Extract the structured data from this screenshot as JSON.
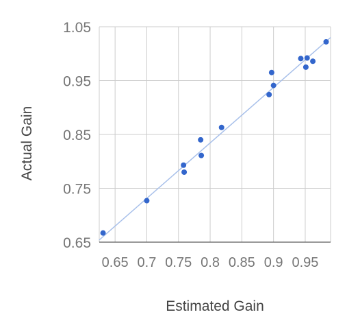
{
  "chart_data": {
    "type": "scatter",
    "title": "",
    "xlabel": "Estimated Gain",
    "ylabel": "Actual Gain",
    "xlim": [
      0.625,
      0.99
    ],
    "ylim": [
      0.65,
      1.05
    ],
    "x_ticks": [
      "0.65",
      "0.7",
      "0.75",
      "0.8",
      "0.85",
      "0.9",
      "0.95"
    ],
    "x_tick_values": [
      0.65,
      0.7,
      0.75,
      0.8,
      0.85,
      0.9,
      0.95
    ],
    "y_ticks": [
      "0.65",
      "0.75",
      "0.85",
      "0.95",
      "1.05"
    ],
    "y_tick_values": [
      0.65,
      0.75,
      0.85,
      0.95,
      1.05
    ],
    "grid": true,
    "legend": "none",
    "points": [
      {
        "x": 0.631,
        "y": 0.667
      },
      {
        "x": 0.7,
        "y": 0.727
      },
      {
        "x": 0.758,
        "y": 0.793
      },
      {
        "x": 0.759,
        "y": 0.78
      },
      {
        "x": 0.785,
        "y": 0.84
      },
      {
        "x": 0.786,
        "y": 0.811
      },
      {
        "x": 0.818,
        "y": 0.863
      },
      {
        "x": 0.893,
        "y": 0.924
      },
      {
        "x": 0.897,
        "y": 0.965
      },
      {
        "x": 0.9,
        "y": 0.941
      },
      {
        "x": 0.943,
        "y": 0.991
      },
      {
        "x": 0.951,
        "y": 0.975
      },
      {
        "x": 0.953,
        "y": 0.992
      },
      {
        "x": 0.962,
        "y": 0.986
      },
      {
        "x": 0.983,
        "y": 1.022
      }
    ],
    "trendline": {
      "x": [
        0.625,
        0.99
      ],
      "y": [
        0.654,
        1.03
      ]
    },
    "colors": {
      "points": "#3366cc",
      "trendline": "#a8c0ea",
      "grid": "#cccccc",
      "axis_text": "#757575",
      "title_text": "#444444"
    }
  }
}
